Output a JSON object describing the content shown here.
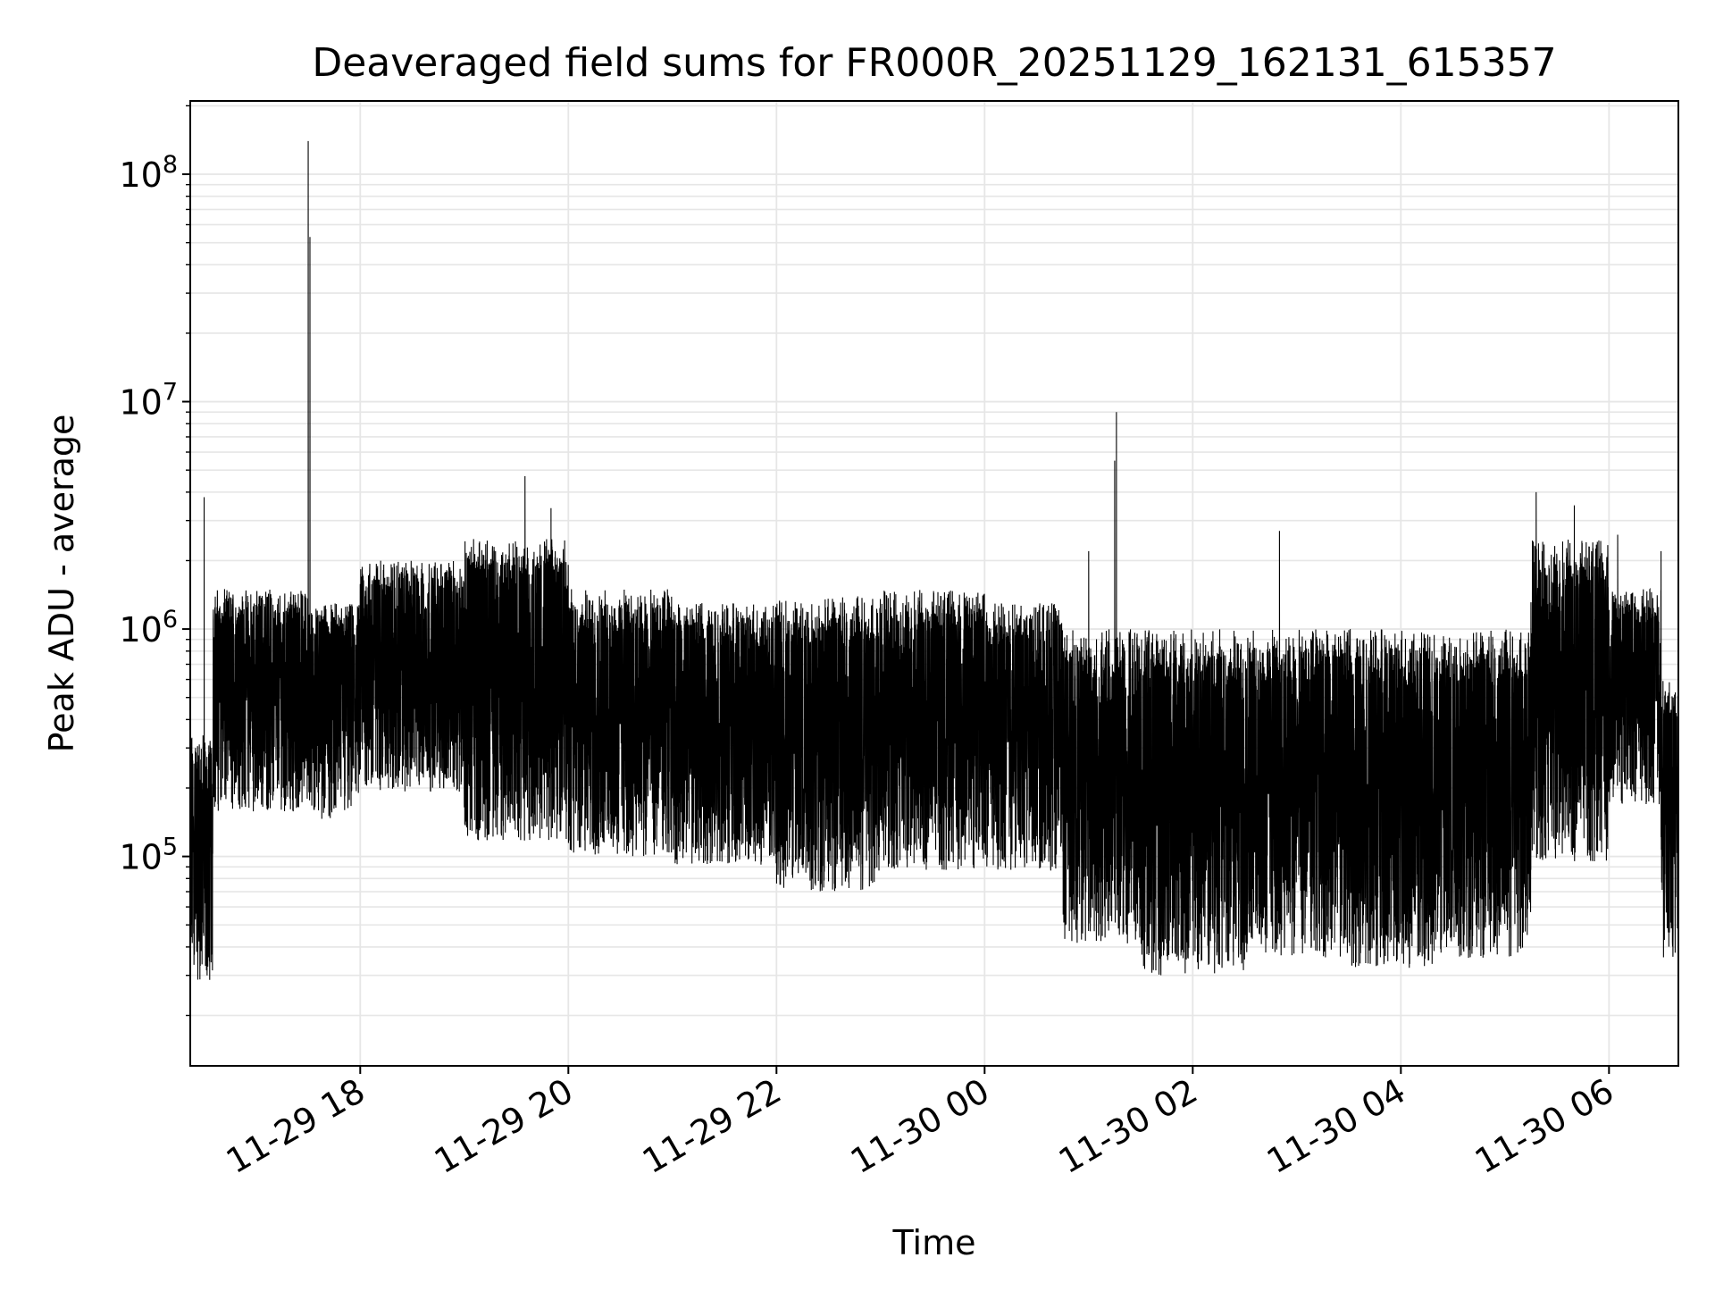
{
  "chart_data": {
    "type": "line",
    "title": "Deaveraged field sums for FR000R_20251129_162131_615357",
    "xlabel": "Time",
    "ylabel": "Peak ADU - average",
    "yscale": "log",
    "grid": true,
    "line_color": "#000000",
    "xlim": [
      "2025-11-29 16:22",
      "2025-11-30 06:40"
    ],
    "ylim": [
      12000,
      210000000
    ],
    "x_ticks": [
      {
        "t": "2025-11-29 18:00",
        "label": "11-29 18"
      },
      {
        "t": "2025-11-29 20:00",
        "label": "11-29 20"
      },
      {
        "t": "2025-11-29 22:00",
        "label": "11-29 22"
      },
      {
        "t": "2025-11-30 00:00",
        "label": "11-30 00"
      },
      {
        "t": "2025-11-30 02:00",
        "label": "11-30 02"
      },
      {
        "t": "2025-11-30 04:00",
        "label": "11-30 04"
      },
      {
        "t": "2025-11-30 06:00",
        "label": "11-30 06"
      }
    ],
    "y_ticks": [
      {
        "value": 100000,
        "base": "10",
        "exp": "5"
      },
      {
        "value": 1000000,
        "base": "10",
        "exp": "6"
      },
      {
        "value": 10000000,
        "base": "10",
        "exp": "7"
      },
      {
        "value": 100000000,
        "base": "10",
        "exp": "8"
      }
    ],
    "series": [
      {
        "segments": [
          {
            "start": "2025-11-29 16:22",
            "end": "2025-11-29 16:35",
            "low": 25000,
            "high": 350000
          },
          {
            "start": "2025-11-29 16:35",
            "end": "2025-11-29 17:30",
            "low": 140000,
            "high": 1500000
          },
          {
            "start": "2025-11-29 17:30",
            "end": "2025-11-29 18:00",
            "low": 130000,
            "high": 1300000
          },
          {
            "start": "2025-11-29 18:00",
            "end": "2025-11-29 19:00",
            "low": 170000,
            "high": 2000000
          },
          {
            "start": "2025-11-29 19:00",
            "end": "2025-11-29 20:00",
            "low": 100000,
            "high": 2500000
          },
          {
            "start": "2025-11-29 20:00",
            "end": "2025-11-29 21:00",
            "low": 85000,
            "high": 1500000
          },
          {
            "start": "2025-11-29 21:00",
            "end": "2025-11-29 22:00",
            "low": 80000,
            "high": 1300000
          },
          {
            "start": "2025-11-29 22:00",
            "end": "2025-11-29 23:00",
            "low": 60000,
            "high": 1400000
          },
          {
            "start": "2025-11-29 23:00",
            "end": "2025-11-30 00:00",
            "low": 75000,
            "high": 1500000
          },
          {
            "start": "2025-11-30 00:00",
            "end": "2025-11-30 00:45",
            "low": 75000,
            "high": 1300000
          },
          {
            "start": "2025-11-30 00:45",
            "end": "2025-11-30 01:30",
            "low": 35000,
            "high": 1000000
          },
          {
            "start": "2025-11-30 01:30",
            "end": "2025-11-30 02:30",
            "low": 25000,
            "high": 1000000
          },
          {
            "start": "2025-11-30 02:30",
            "end": "2025-11-30 03:30",
            "low": 30000,
            "high": 1000000
          },
          {
            "start": "2025-11-30 03:30",
            "end": "2025-11-30 04:30",
            "low": 27000,
            "high": 1000000
          },
          {
            "start": "2025-11-30 04:30",
            "end": "2025-11-30 05:15",
            "low": 30000,
            "high": 1000000
          },
          {
            "start": "2025-11-30 05:15",
            "end": "2025-11-30 06:00",
            "low": 80000,
            "high": 2500000
          },
          {
            "start": "2025-11-30 06:00",
            "end": "2025-11-30 06:30",
            "low": 150000,
            "high": 1500000
          },
          {
            "start": "2025-11-30 06:30",
            "end": "2025-11-30 06:40",
            "low": 30000,
            "high": 600000
          }
        ],
        "spikes": [
          {
            "t": "2025-11-29 16:30",
            "value": 3800000
          },
          {
            "t": "2025-11-29 17:30",
            "value": 140000000
          },
          {
            "t": "2025-11-29 17:31",
            "value": 53000000
          },
          {
            "t": "2025-11-29 19:35",
            "value": 4700000
          },
          {
            "t": "2025-11-29 19:50",
            "value": 3400000
          },
          {
            "t": "2025-11-30 01:00",
            "value": 2200000
          },
          {
            "t": "2025-11-30 01:15",
            "value": 5500000
          },
          {
            "t": "2025-11-30 01:16",
            "value": 9000000
          },
          {
            "t": "2025-11-30 02:50",
            "value": 2700000
          },
          {
            "t": "2025-11-30 05:18",
            "value": 4000000
          },
          {
            "t": "2025-11-30 05:40",
            "value": 3500000
          },
          {
            "t": "2025-11-30 06:05",
            "value": 2600000
          },
          {
            "t": "2025-11-30 06:30",
            "value": 2200000
          }
        ]
      }
    ]
  }
}
